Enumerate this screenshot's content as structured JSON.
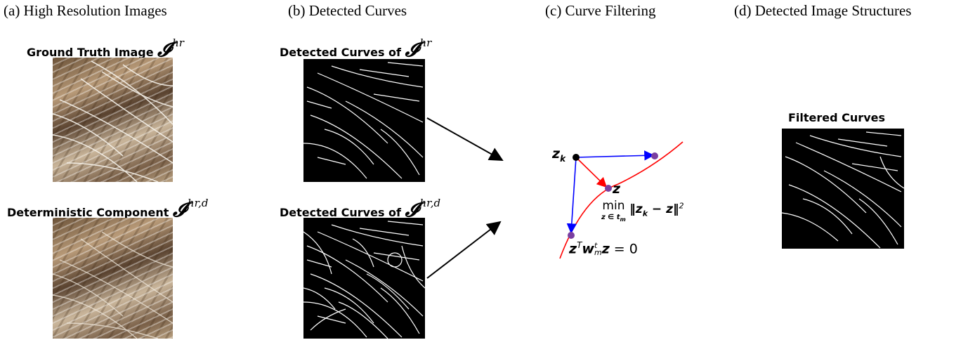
{
  "columns": {
    "a": {
      "header": "(a) High Resolution Images",
      "top_label": "Ground Truth Image",
      "bottom_label": "Deterministic Component"
    },
    "b": {
      "header": "(b) Detected Curves",
      "top_label": "Detected Curves of",
      "bottom_label": "Detected Curves of"
    },
    "c": {
      "header": "(c) Curve Filtering"
    },
    "d": {
      "header": "(d) Detected Image Structures",
      "label": "Filtered Curves"
    }
  },
  "symbols": {
    "I": "𝓘",
    "hr": "hr",
    "hrd": "hr,d"
  },
  "filtering": {
    "zk": "z",
    "zk_sub": "k",
    "z": "z",
    "min": "min",
    "min_sub": "z ∈ t",
    "min_sub_m": "m",
    "norm": "‖z",
    "norm_k": "k",
    "norm_rest": " − z‖",
    "norm_sq": "2",
    "constraint_z": "z",
    "constraint_T": "T",
    "constraint_w": "w",
    "constraint_wsup": "t",
    "constraint_wsub": "m",
    "constraint_z2": "z",
    "constraint_eq": " = 0"
  },
  "colors": {
    "curve": "#ff0000",
    "point_purple": "#7a3fa0",
    "point_black": "#000000",
    "arrow_blue": "#0000ff",
    "arrow_red": "#ff0000"
  }
}
